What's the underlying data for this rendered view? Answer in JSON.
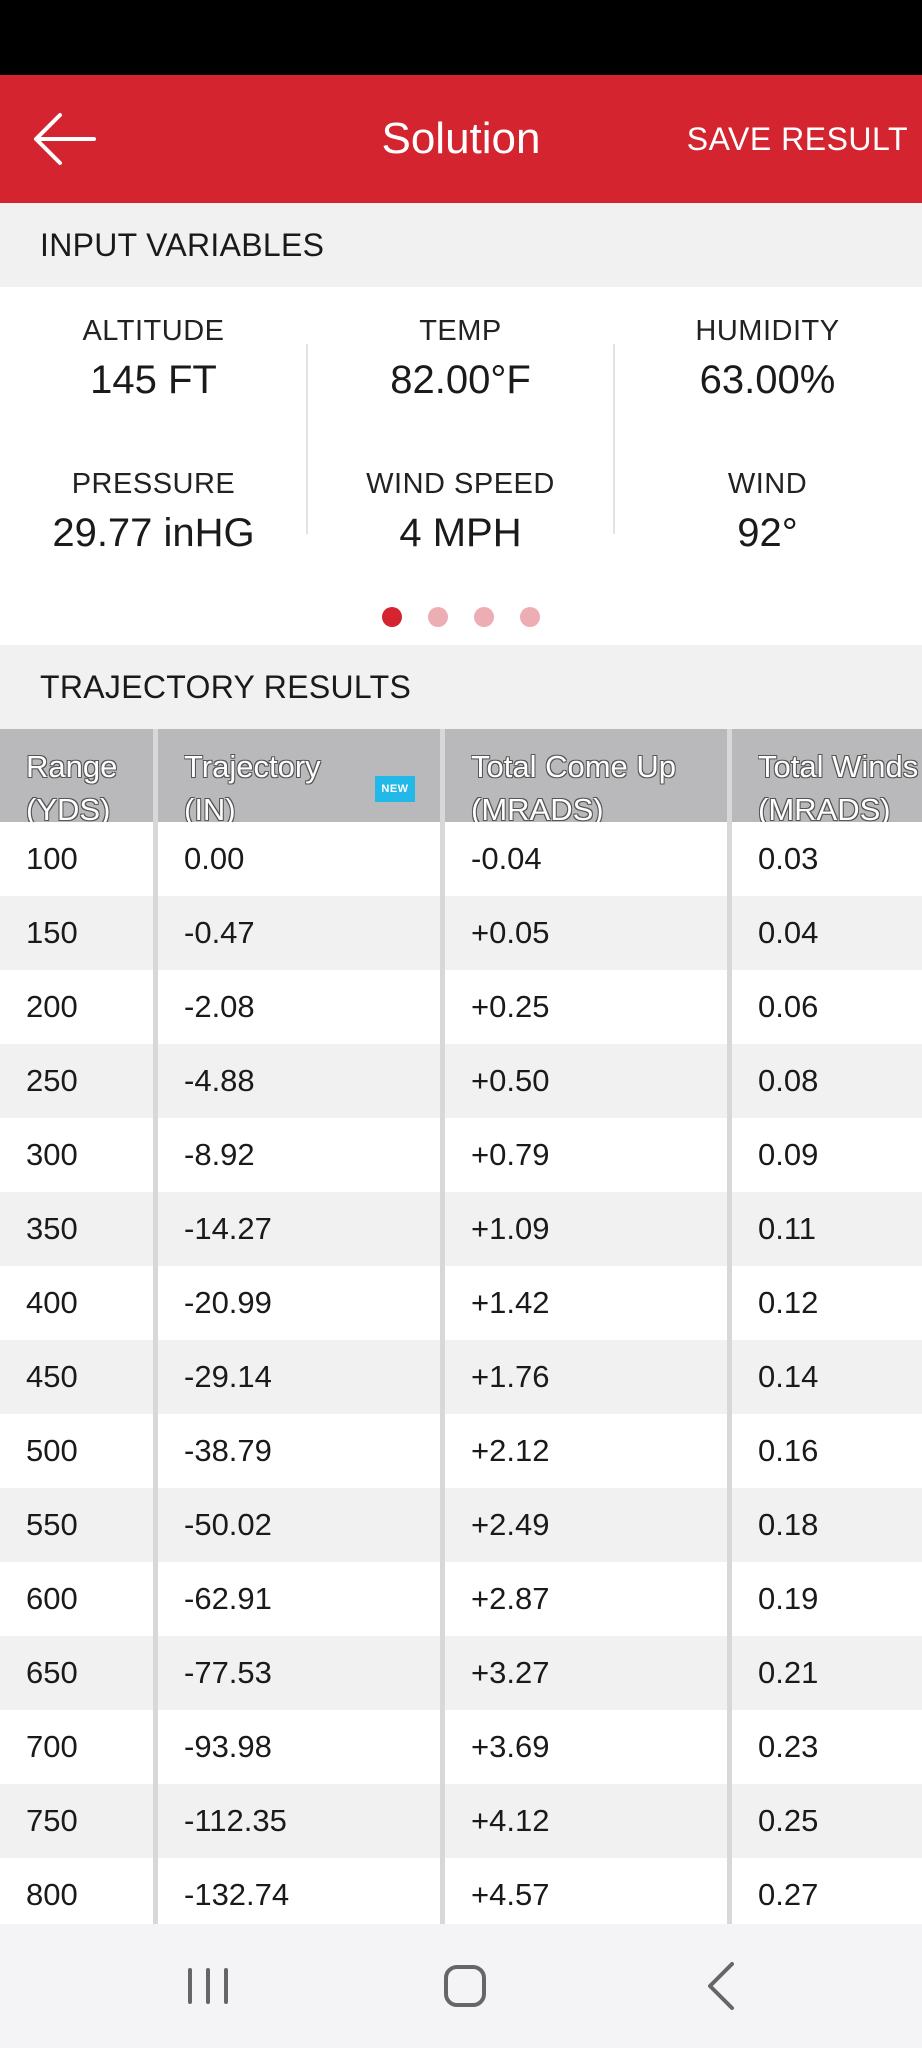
{
  "app_bar": {
    "title": "Solution",
    "save_label": "SAVE RESULT",
    "accent_color": "#d4242f"
  },
  "input_section": {
    "header": "INPUT VARIABLES",
    "variables": [
      {
        "label": "ALTITUDE",
        "value": "145 FT"
      },
      {
        "label": "TEMP",
        "value": "82.00°F"
      },
      {
        "label": "HUMIDITY",
        "value": "63.00%"
      },
      {
        "label": "PRESSURE",
        "value": "29.77 inHG"
      },
      {
        "label": "WIND SPEED",
        "value": "4 MPH"
      },
      {
        "label": "WIND",
        "value": "92°"
      }
    ],
    "page_indicator": {
      "pages": 4,
      "current": 1
    }
  },
  "trajectory_section": {
    "header": "TRAJECTORY RESULTS",
    "columns": [
      {
        "label": "Range\n(YDS)"
      },
      {
        "label": "Trajectory\n(IN)",
        "badge": "NEW"
      },
      {
        "label": "Total Come Up\n(MRADS)"
      },
      {
        "label": "Total Winds\n(MRADS)"
      }
    ],
    "rows": [
      [
        "100",
        "0.00",
        "-0.04",
        "0.03"
      ],
      [
        "150",
        "-0.47",
        "+0.05",
        "0.04"
      ],
      [
        "200",
        "-2.08",
        "+0.25",
        "0.06"
      ],
      [
        "250",
        "-4.88",
        "+0.50",
        "0.08"
      ],
      [
        "300",
        "-8.92",
        "+0.79",
        "0.09"
      ],
      [
        "350",
        "-14.27",
        "+1.09",
        "0.11"
      ],
      [
        "400",
        "-20.99",
        "+1.42",
        "0.12"
      ],
      [
        "450",
        "-29.14",
        "+1.76",
        "0.14"
      ],
      [
        "500",
        "-38.79",
        "+2.12",
        "0.16"
      ],
      [
        "550",
        "-50.02",
        "+2.49",
        "0.18"
      ],
      [
        "600",
        "-62.91",
        "+2.87",
        "0.19"
      ],
      [
        "650",
        "-77.53",
        "+3.27",
        "0.21"
      ],
      [
        "700",
        "-93.98",
        "+3.69",
        "0.23"
      ],
      [
        "750",
        "-112.35",
        "+4.12",
        "0.25"
      ],
      [
        "800",
        "-132.74",
        "+4.57",
        "0.27"
      ]
    ]
  },
  "nav": {
    "icons": [
      "recents-icon",
      "home-icon",
      "back-icon"
    ]
  }
}
